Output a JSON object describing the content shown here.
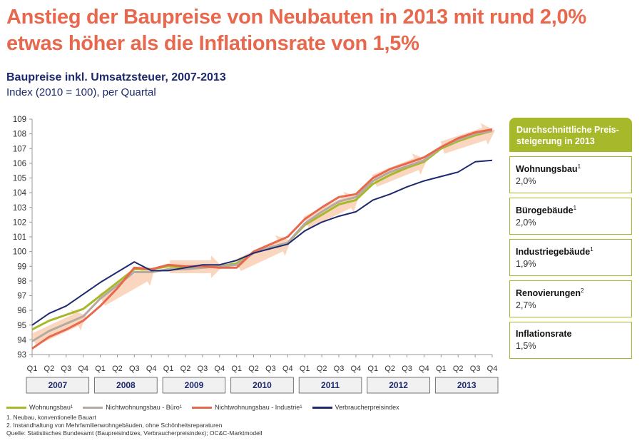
{
  "header": {
    "title_line1": "Anstieg der Baupreise von Neubauten in 2013 mit rund 2,0%",
    "title_line2": "etwas höher als die Inflationsrate von 1,5%",
    "subtitle": "Baupreise inkl. Umsatzsteuer, 2007-2013",
    "subtitle2": "Index (2010 = 100), per Quartal"
  },
  "side_panel": {
    "header": "Durchschnittliche Preis- steigerung in 2013",
    "items": [
      {
        "label": "Wohnungsbau",
        "sup": "1",
        "value": "2,0%"
      },
      {
        "label": "Bürogebäude",
        "sup": "1",
        "value": "2,0%"
      },
      {
        "label": "Industriegebäude",
        "sup": "1",
        "value": "1,9%"
      },
      {
        "label": "Renovierungen",
        "sup": "2",
        "value": "2,7%"
      },
      {
        "label": "Inflationsrate",
        "sup": "",
        "value": "1,5%"
      }
    ]
  },
  "legend": [
    {
      "label": "Wohnungsbau",
      "sup": "1",
      "color": "#a7b82a"
    },
    {
      "label": "Nichtwohnungsbau - Büro",
      "sup": "1",
      "color": "#b5aaa0"
    },
    {
      "label": "Nichtwohnungsbau - Industrie",
      "sup": "1",
      "color": "#e8684e"
    },
    {
      "label": "Verbraucherpreisindex",
      "sup": "",
      "color": "#1e2a6e"
    }
  ],
  "notes": {
    "n1": "1.     Neubau, konventionelle Bauart",
    "n2": "2.     Instandhaltung von Mehrfamilienwohngebäuden, ohne Schönheitsreparaturen",
    "source": "Quelle: Statistisches Bundesamt (Baupreisindizes, Verbraucherpreisindex); OC&C-Marktmodell"
  },
  "chart_data": {
    "type": "line",
    "title": "Baupreise inkl. Umsatzsteuer, 2007-2013",
    "ylim": [
      93,
      109
    ],
    "yticks": [
      93,
      94,
      95,
      96,
      97,
      98,
      99,
      100,
      101,
      102,
      103,
      104,
      105,
      106,
      107,
      108,
      109
    ],
    "quarters": [
      "Q1",
      "Q2",
      "Q3",
      "Q4"
    ],
    "years": [
      "2007",
      "2008",
      "2009",
      "2010",
      "2011",
      "2012",
      "2013"
    ],
    "x": [
      "2007 Q1",
      "2007 Q2",
      "2007 Q3",
      "2007 Q4",
      "2008 Q1",
      "2008 Q2",
      "2008 Q3",
      "2008 Q4",
      "2009 Q1",
      "2009 Q2",
      "2009 Q3",
      "2009 Q4",
      "2010 Q1",
      "2010 Q2",
      "2010 Q3",
      "2010 Q4",
      "2011 Q1",
      "2011 Q2",
      "2011 Q3",
      "2011 Q4",
      "2012 Q1",
      "2012 Q2",
      "2012 Q3",
      "2012 Q4",
      "2013 Q1",
      "2013 Q2",
      "2013 Q3",
      "2013 Q4"
    ],
    "series": [
      {
        "name": "Wohnungsbau",
        "color": "#a7b82a",
        "values": [
          94.7,
          95.3,
          95.7,
          96.1,
          97.0,
          97.9,
          98.8,
          98.8,
          99.0,
          98.9,
          98.9,
          99.0,
          99.2,
          99.9,
          100.3,
          100.6,
          101.8,
          102.5,
          103.2,
          103.5,
          104.6,
          105.2,
          105.7,
          106.1,
          107.0,
          107.5,
          107.9,
          108.2
        ]
      },
      {
        "name": "Nichtwohnungsbau - Büro",
        "color": "#b5aaa0",
        "values": [
          93.9,
          94.6,
          95.1,
          95.6,
          96.8,
          97.7,
          98.6,
          98.6,
          98.8,
          98.8,
          98.9,
          99.0,
          99.1,
          99.9,
          100.3,
          100.6,
          101.9,
          102.7,
          103.4,
          103.7,
          104.8,
          105.4,
          105.8,
          106.2,
          107.1,
          107.6,
          108.0,
          108.2
        ]
      },
      {
        "name": "Nichtwohnungsbau - Industrie",
        "color": "#e8684e",
        "values": [
          93.4,
          94.2,
          94.7,
          95.3,
          96.3,
          97.5,
          98.9,
          98.8,
          99.1,
          99.0,
          99.0,
          98.9,
          98.9,
          100.0,
          100.5,
          101.0,
          102.2,
          103.0,
          103.7,
          103.9,
          105.0,
          105.6,
          106.0,
          106.4,
          107.1,
          107.7,
          108.1,
          108.3
        ]
      },
      {
        "name": "Verbraucherpreisindex",
        "color": "#1e2a6e",
        "values": [
          95.0,
          95.8,
          96.3,
          97.1,
          97.9,
          98.6,
          99.3,
          98.7,
          98.7,
          98.9,
          99.1,
          99.1,
          99.4,
          99.9,
          100.2,
          100.5,
          101.4,
          102.0,
          102.4,
          102.7,
          103.5,
          103.9,
          104.4,
          104.8,
          105.1,
          105.4,
          106.1,
          106.2
        ]
      }
    ]
  }
}
